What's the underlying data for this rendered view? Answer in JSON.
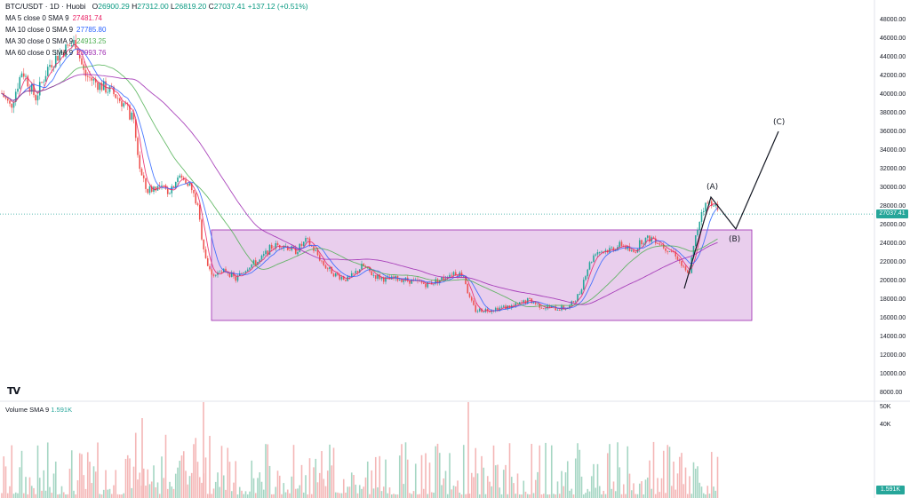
{
  "header": {
    "symbol": "BTC/USDT · 1D · Huobi",
    "open_label": "O",
    "open": "26900.29",
    "high_label": "H",
    "high": "27312.00",
    "low_label": "L",
    "low": "26819.20",
    "close_label": "C",
    "close": "27037.41",
    "change": "+137.12 (+0.51%)"
  },
  "indicators": [
    {
      "label": "MA 5 close 0 SMA 9",
      "value": "27481.74",
      "color": "#e91e63"
    },
    {
      "label": "MA 10 close 0 SMA 9",
      "value": "27785.80",
      "color": "#2962ff"
    },
    {
      "label": "MA 30 close 0 SMA 9",
      "value": "24913.25",
      "color": "#4caf50"
    },
    {
      "label": "MA 60 close 0 SMA 9",
      "value": "23993.76",
      "color": "#9c27b0"
    }
  ],
  "volume": {
    "label": "Volume SMA 9",
    "value": "1.591K",
    "axis_labels": [
      "50K",
      "40K"
    ],
    "badge": "1.591K"
  },
  "price_axis": {
    "labels": [
      "48000.00",
      "46000.00",
      "44000.00",
      "42000.00",
      "40000.00",
      "38000.00",
      "36000.00",
      "34000.00",
      "32000.00",
      "30000.00",
      "28000.00",
      "26000.00",
      "24000.00",
      "22000.00",
      "20000.00",
      "18000.00",
      "16000.00",
      "14000.00",
      "12000.00",
      "10000.00",
      "8000.00"
    ],
    "current_price_badge": "27037.41"
  },
  "waves": {
    "a": "(A)",
    "b": "(B)",
    "c": "(C)"
  },
  "logo_text": "TV",
  "colors": {
    "up": "#26a69a",
    "down": "#ef5350",
    "range_box": "#e1bee7",
    "range_border": "#9c27b0"
  }
}
